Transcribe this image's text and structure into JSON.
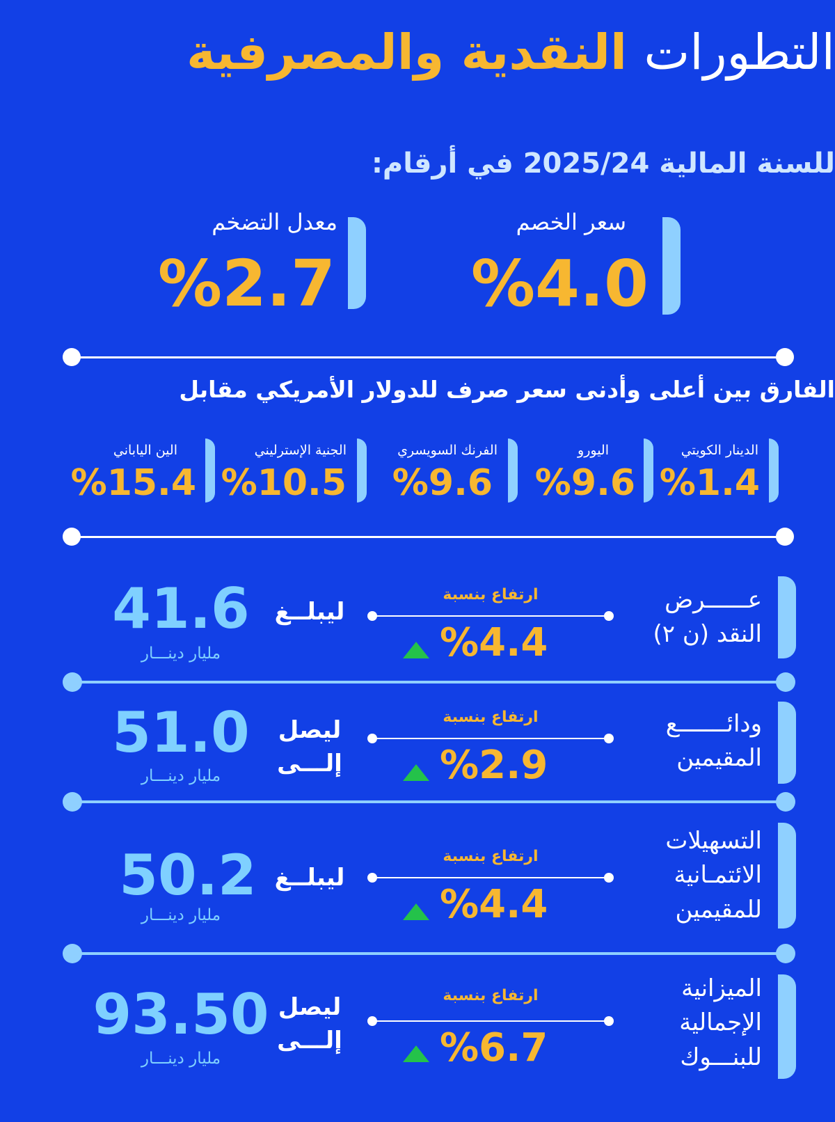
{
  "title": {
    "part1": "التطورات",
    "part2": "النقدية والمصرفية"
  },
  "subtitle": "للسنة المالية 2025/24 في أرقام:",
  "kpis": [
    {
      "label": "سعر الخصم",
      "value": "%4.0"
    },
    {
      "label": "معدل التضخم",
      "value": "%2.7"
    }
  ],
  "fx": {
    "title": "الفارق بين أعلى وأدنى سعر صرف للدولار الأمريكي مقابل",
    "currencies": [
      {
        "label": "الدينار الكويتي",
        "value": "%1.4"
      },
      {
        "label": "اليورو",
        "value": "%9.6"
      },
      {
        "label": "الفرنك السويسري",
        "value": "%9.6"
      },
      {
        "label": "الجنية الإسترليني",
        "value": "%10.5"
      },
      {
        "label": "الين الياباني",
        "value": "%15.4"
      }
    ]
  },
  "indicators": [
    {
      "label_line1": "عــــــرض",
      "label_line2": "النقد (ن ٢)",
      "label_line3": "",
      "rise_label": "ارتفاع بنسبة",
      "pct": "%4.4",
      "verb_line1": "ليبلــغ",
      "verb_line2": "",
      "value": "41.6",
      "unit": "مليار دينـــار"
    },
    {
      "label_line1": "ودائـــــــع",
      "label_line2": "المقيمين",
      "label_line3": "",
      "rise_label": "ارتفاع بنسبة",
      "pct": "%2.9",
      "verb_line1": "ليصل",
      "verb_line2": "إلـــى",
      "value": "51.0",
      "unit": "مليار دينـــار"
    },
    {
      "label_line1": "التسهيلات",
      "label_line2": "الائتمـانية",
      "label_line3": "للمقيمين",
      "rise_label": "ارتفاع بنسبة",
      "pct": "%4.4",
      "verb_line1": "ليبلــغ",
      "verb_line2": "",
      "value": "50.2",
      "unit": "مليار دينـــار"
    },
    {
      "label_line1": "الميزانية",
      "label_line2": "الإجمالية",
      "label_line3": "للبنـــوك",
      "rise_label": "ارتفاع بنسبة",
      "pct": "%6.7",
      "verb_line1": "ليصل",
      "verb_line2": "إلـــى",
      "value": "93.50",
      "unit": "مليار دينـــار"
    }
  ],
  "colors": {
    "background": "#1240e6",
    "accent": "#f7b731",
    "light_blue": "#8fd0ff",
    "up_arrow": "#24c24a"
  }
}
